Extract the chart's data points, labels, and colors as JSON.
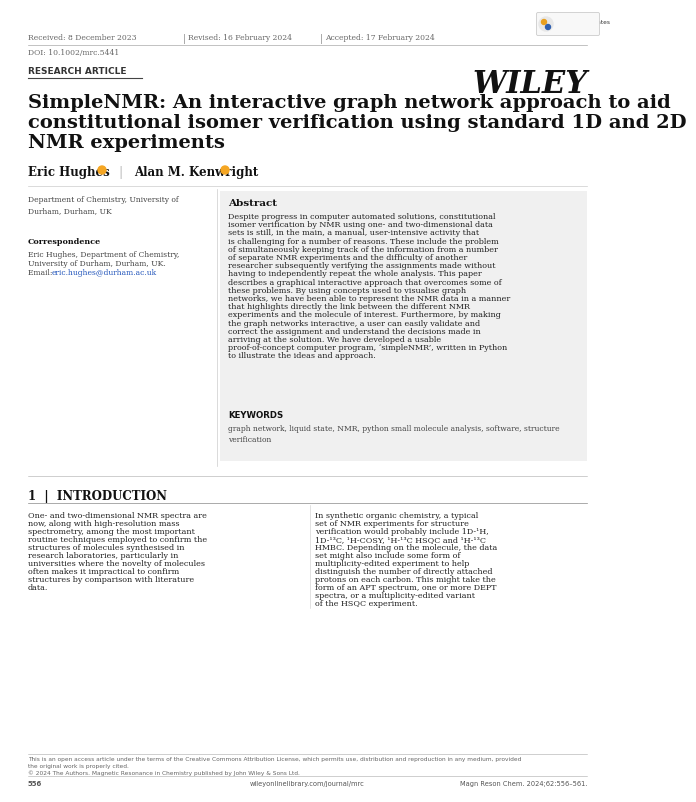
{
  "bg_color": "#ffffff",
  "header_received": "Received: 8 December 2023",
  "header_revised": "Revised: 16 February 2024",
  "header_accepted": "Accepted: 17 February 2024",
  "doi": "DOI: 10.1002/mrc.5441",
  "section_label": "RESEARCH ARTICLE",
  "wiley_logo": "WILEY",
  "title_line1": "SimpleNMR: An interactive graph network approach to aid",
  "title_line2": "constitutional isomer verification using standard 1D and 2D",
  "title_line3": "NMR experiments",
  "author1": "Eric Hughes",
  "author2": "Alan M. Kenwright",
  "affiliation": "Department of Chemistry, University of\nDurham, Durham, UK",
  "correspondence_label": "Correspondence",
  "correspondence_body": "Eric Hughes, Department of Chemistry,\nUniversity of Durham, Durham, UK.\nEmail: eric.hughes@durham.ac.uk",
  "email_text": "eric.hughes@durham.ac.uk",
  "abstract_title": "Abstract",
  "abstract_text": "Despite progress in computer automated solutions, constitutional isomer verification by NMR using one- and two-dimensional data sets is still, in the main, a manual, user-intensive activity that is challenging for a number of reasons. These include the problem of simultaneously keeping track of the information from a number of separate NMR experiments and the difficulty of another researcher subsequently verifying the assignments made without having to independently repeat the whole analysis. This paper describes a graphical interactive approach that overcomes some of these problems. By using concepts used to visualise graph networks, we have been able to represent the NMR data in a manner that highlights directly the link between the different NMR experiments and the molecule of interest. Furthermore, by making the graph networks interactive, a user can easily validate and correct the assignment and understand the decisions made in arriving at the solution. We have developed a usable proof-of-concept computer program, ‘simpleNMR’, written in Python to illustrate the ideas and approach.",
  "keywords_label": "KEYWORDS",
  "keywords_text": "graph network, liquid state, NMR, python small molecule analysis, software, structure\nverification",
  "intro_heading": "1  |  INTRODUCTION",
  "intro_col1": "One- and two-dimensional NMR spectra are now, along with high-resolution mass spectrometry, among the most important routine techniques employed to confirm the structures of molecules synthesised in research laboratories, particularly in universities where the novelty of molecules often makes it impractical to confirm structures by comparison with literature data.",
  "intro_col2": "In synthetic organic chemistry, a typical set of NMR experiments for structure verification would probably include 1D-¹H, 1D-¹³C, ¹H-COSY, ¹H-¹³C HSQC and ¹H-¹³C HMBC. Depending on the molecule, the data set might also include some form of multiplicity-edited experiment to help distinguish the number of directly attached protons on each carbon. This might take the form of an APT spectrum, one or more DEPT spectra, or a multiplicity-edited variant of the HSQC experiment.",
  "footer_cc": "This is an open access article under the terms of the Creative Commons Attribution License, which permits use, distribution and reproduction in any medium, provided\nthe original work is properly cited.",
  "footer_copyright": "© 2024 The Authors. Magnetic Resonance in Chemistry published by John Wiley & Sons Ltd.",
  "footer_page": "556",
  "footer_journal": "wileyonlinelibrary.com/journal/mrc",
  "footer_cite": "Magn Reson Chem. 2024;62:556–561.",
  "abstract_bg": "#f0f0f0",
  "orcid_color": "#f5a623",
  "separator_color": "#aaaaaa",
  "text_dark": "#111111",
  "text_mid": "#444444",
  "text_light": "#666666",
  "link_color": "#2255bb"
}
